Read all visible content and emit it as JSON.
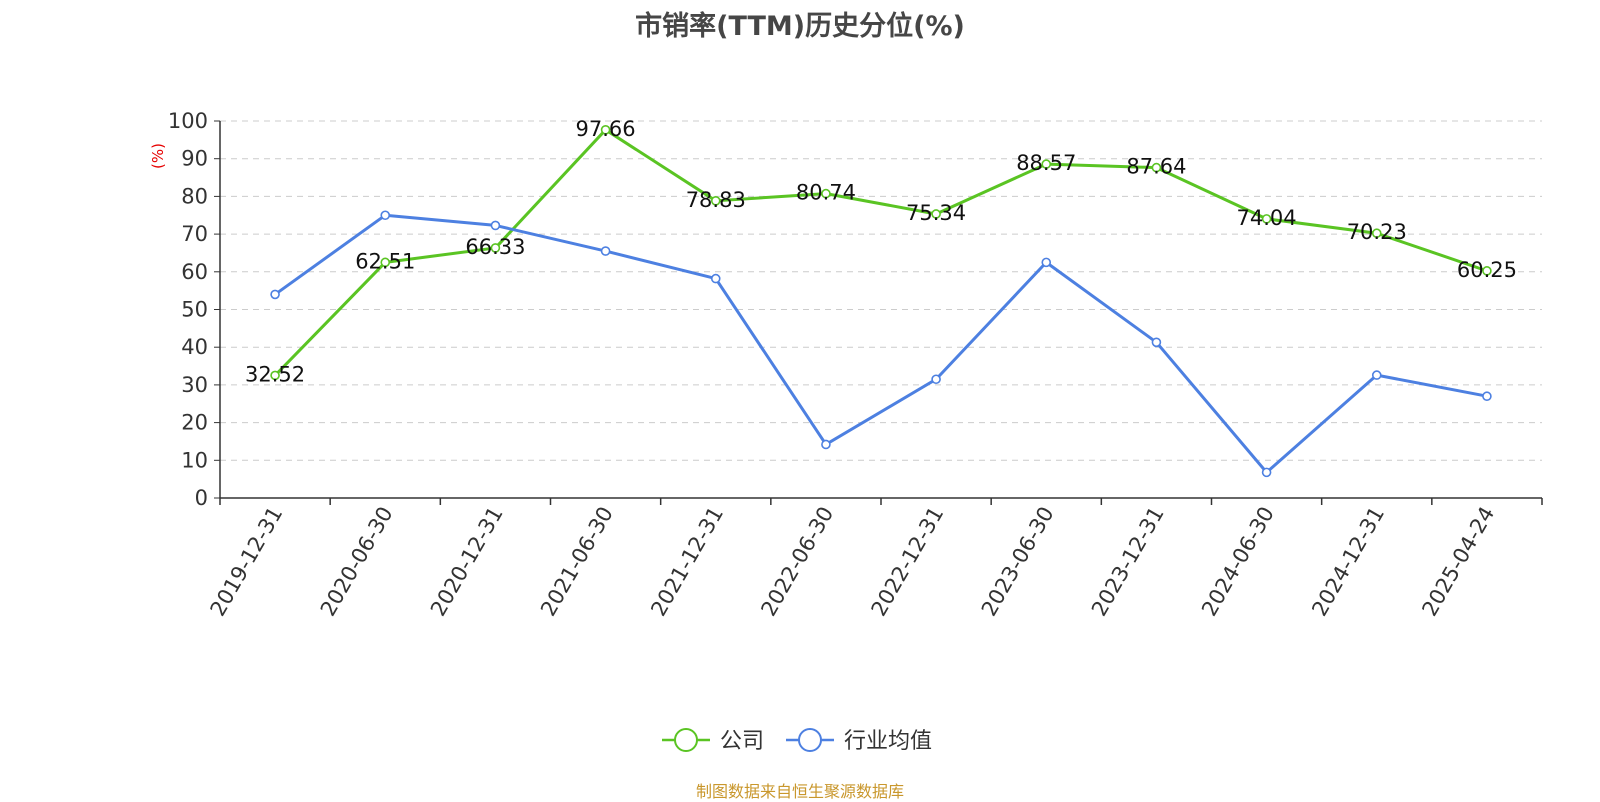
{
  "chart_data": {
    "type": "line",
    "title": "市销率(TTM)历史分位(%)",
    "ylabel": "(%)",
    "ylim": [
      0,
      100
    ],
    "ytick_step": 10,
    "categories": [
      "2019-12-31",
      "2020-06-30",
      "2020-12-31",
      "2021-06-30",
      "2021-12-31",
      "2022-06-30",
      "2022-12-31",
      "2023-06-30",
      "2023-12-31",
      "2024-06-30",
      "2024-12-31",
      "2025-04-24"
    ],
    "grid": true,
    "legend_position": "bottom",
    "series": [
      {
        "name": "公司",
        "color": "#5ac423",
        "show_labels": true,
        "values": [
          32.52,
          62.51,
          66.33,
          97.66,
          78.83,
          80.74,
          75.34,
          88.57,
          87.64,
          74.04,
          70.23,
          60.25
        ]
      },
      {
        "name": "行业均值",
        "color": "#4d80e1",
        "show_labels": false,
        "values": [
          54,
          75,
          72.3,
          65.5,
          58.2,
          14.2,
          31.5,
          62.5,
          41.3,
          6.8,
          32.6,
          27.0
        ]
      }
    ]
  },
  "source_text": "制图数据来自恒生聚源数据库"
}
